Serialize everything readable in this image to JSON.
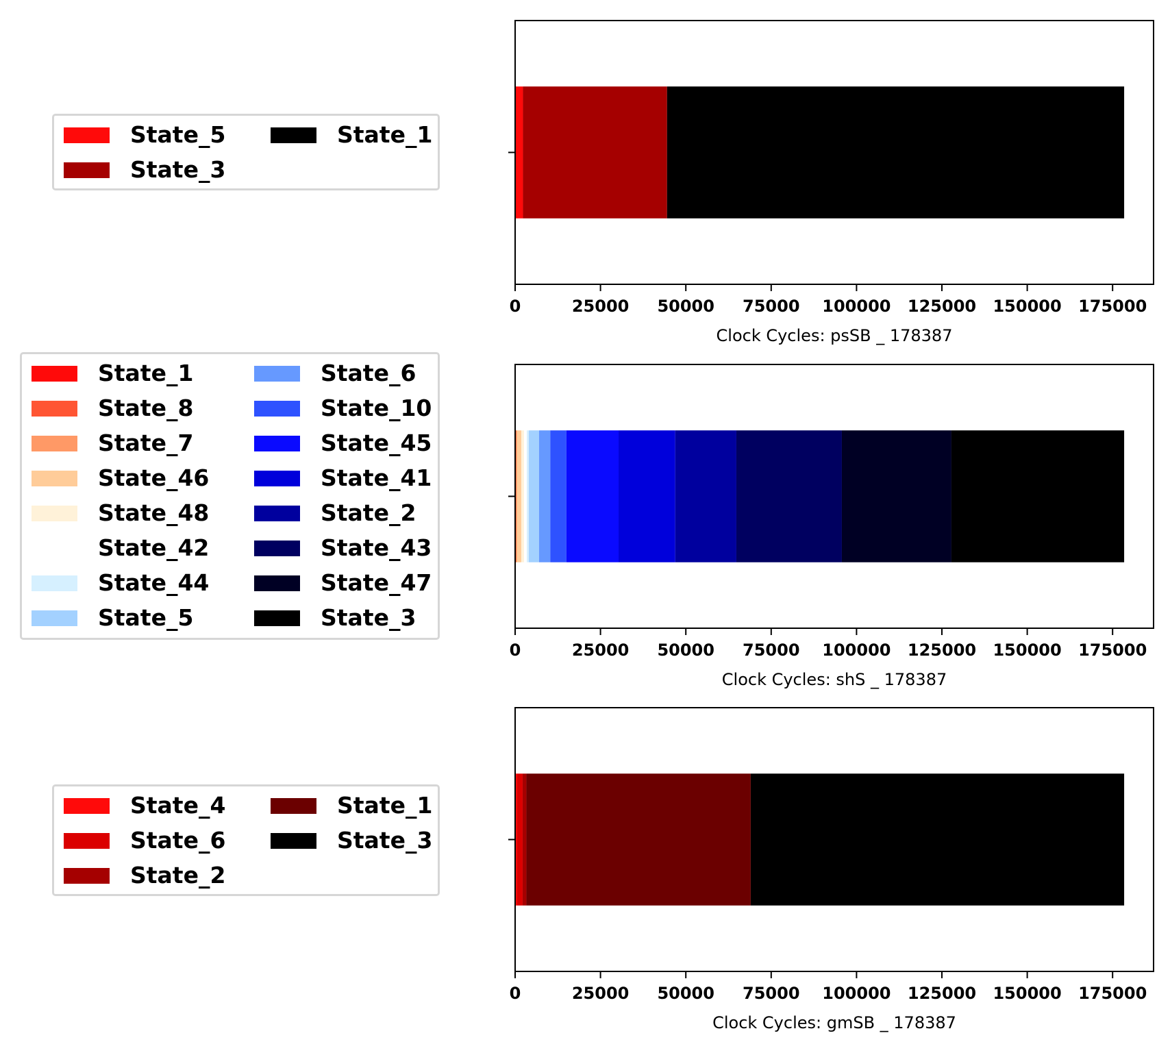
{
  "chart_data": [
    {
      "type": "bar",
      "orientation": "horizontal",
      "stacked": true,
      "xlabel": "Clock Cycles: psSB _ 178387",
      "xlim": [
        0,
        187000
      ],
      "xticks": [
        "0",
        "25000",
        "50000",
        "75000",
        "100000",
        "125000",
        "150000",
        "175000"
      ],
      "total": 178387,
      "segments": [
        {
          "name": "State_5",
          "start": 0,
          "end": 2300,
          "color": "#ff0a0a"
        },
        {
          "name": "State_3",
          "start": 2300,
          "end": 44500,
          "color": "#a50000"
        },
        {
          "name": "State_1",
          "start": 44500,
          "end": 178387,
          "color": "#000000"
        }
      ],
      "legend": {
        "columns": 2,
        "entries": [
          {
            "label": "State_5",
            "color": "#ff0a0a"
          },
          {
            "label": "State_3",
            "color": "#a50000"
          },
          {
            "label": "State_1",
            "color": "#000000"
          }
        ]
      }
    },
    {
      "type": "bar",
      "orientation": "horizontal",
      "stacked": true,
      "xlabel": "Clock Cycles: shS _ 178387",
      "xlim": [
        0,
        187000
      ],
      "xticks": [
        "0",
        "25000",
        "50000",
        "75000",
        "100000",
        "125000",
        "150000",
        "175000"
      ],
      "total": 178387,
      "segments": [
        {
          "name": "State_1",
          "start": 0,
          "end": 150,
          "color": "#ff0a0a"
        },
        {
          "name": "State_8",
          "start": 150,
          "end": 300,
          "color": "#ff5533"
        },
        {
          "name": "State_7",
          "start": 300,
          "end": 500,
          "color": "#ff9966"
        },
        {
          "name": "State_46",
          "start": 500,
          "end": 1800,
          "color": "#ffcc99"
        },
        {
          "name": "State_48",
          "start": 1800,
          "end": 2600,
          "color": "#fff2d9"
        },
        {
          "name": "State_42",
          "start": 2600,
          "end": 3400,
          "color": "#ffffff"
        },
        {
          "name": "State_44",
          "start": 3400,
          "end": 4000,
          "color": "#d6f0ff"
        },
        {
          "name": "State_5",
          "start": 4000,
          "end": 7000,
          "color": "#a3d1ff"
        },
        {
          "name": "State_6",
          "start": 7000,
          "end": 10300,
          "color": "#6699ff"
        },
        {
          "name": "State_10",
          "start": 10300,
          "end": 15000,
          "color": "#2e52ff"
        },
        {
          "name": "State_45",
          "start": 15000,
          "end": 30300,
          "color": "#0a0aff"
        },
        {
          "name": "State_41",
          "start": 30300,
          "end": 46900,
          "color": "#0000db"
        },
        {
          "name": "State_2",
          "start": 46900,
          "end": 64800,
          "color": "#00009e"
        },
        {
          "name": "State_43",
          "start": 64800,
          "end": 95700,
          "color": "#000060"
        },
        {
          "name": "State_47",
          "start": 95700,
          "end": 127800,
          "color": "#000024"
        },
        {
          "name": "State_3",
          "start": 127800,
          "end": 178387,
          "color": "#000000"
        }
      ],
      "legend": {
        "columns": 2,
        "entries": [
          {
            "label": "State_1",
            "color": "#ff0a0a"
          },
          {
            "label": "State_8",
            "color": "#ff5533"
          },
          {
            "label": "State_7",
            "color": "#ff9966"
          },
          {
            "label": "State_46",
            "color": "#ffcc99"
          },
          {
            "label": "State_48",
            "color": "#fff2d9"
          },
          {
            "label": "State_42",
            "color": "#ffffff"
          },
          {
            "label": "State_44",
            "color": "#d6f0ff"
          },
          {
            "label": "State_5",
            "color": "#a3d1ff"
          },
          {
            "label": "State_6",
            "color": "#6699ff"
          },
          {
            "label": "State_10",
            "color": "#2e52ff"
          },
          {
            "label": "State_45",
            "color": "#0a0aff"
          },
          {
            "label": "State_41",
            "color": "#0000db"
          },
          {
            "label": "State_2",
            "color": "#00009e"
          },
          {
            "label": "State_43",
            "color": "#000060"
          },
          {
            "label": "State_47",
            "color": "#000024"
          },
          {
            "label": "State_3",
            "color": "#000000"
          }
        ]
      }
    },
    {
      "type": "bar",
      "orientation": "horizontal",
      "stacked": true,
      "xlabel": "Clock Cycles: gmSB _ 178387",
      "xlim": [
        0,
        187000
      ],
      "xticks": [
        "0",
        "25000",
        "50000",
        "75000",
        "100000",
        "125000",
        "150000",
        "175000"
      ],
      "total": 178387,
      "segments": [
        {
          "name": "State_4",
          "start": 0,
          "end": 600,
          "color": "#ff0a0a"
        },
        {
          "name": "State_6",
          "start": 600,
          "end": 2200,
          "color": "#db0000"
        },
        {
          "name": "State_2",
          "start": 2200,
          "end": 3300,
          "color": "#a50000"
        },
        {
          "name": "State_1",
          "start": 3300,
          "end": 69000,
          "color": "#6b0000"
        },
        {
          "name": "State_3",
          "start": 69000,
          "end": 178387,
          "color": "#000000"
        }
      ],
      "legend": {
        "columns": 2,
        "entries": [
          {
            "label": "State_4",
            "color": "#ff0a0a"
          },
          {
            "label": "State_6",
            "color": "#db0000"
          },
          {
            "label": "State_2",
            "color": "#a50000"
          },
          {
            "label": "State_1",
            "color": "#6b0000"
          },
          {
            "label": "State_3",
            "color": "#000000"
          }
        ]
      }
    }
  ]
}
